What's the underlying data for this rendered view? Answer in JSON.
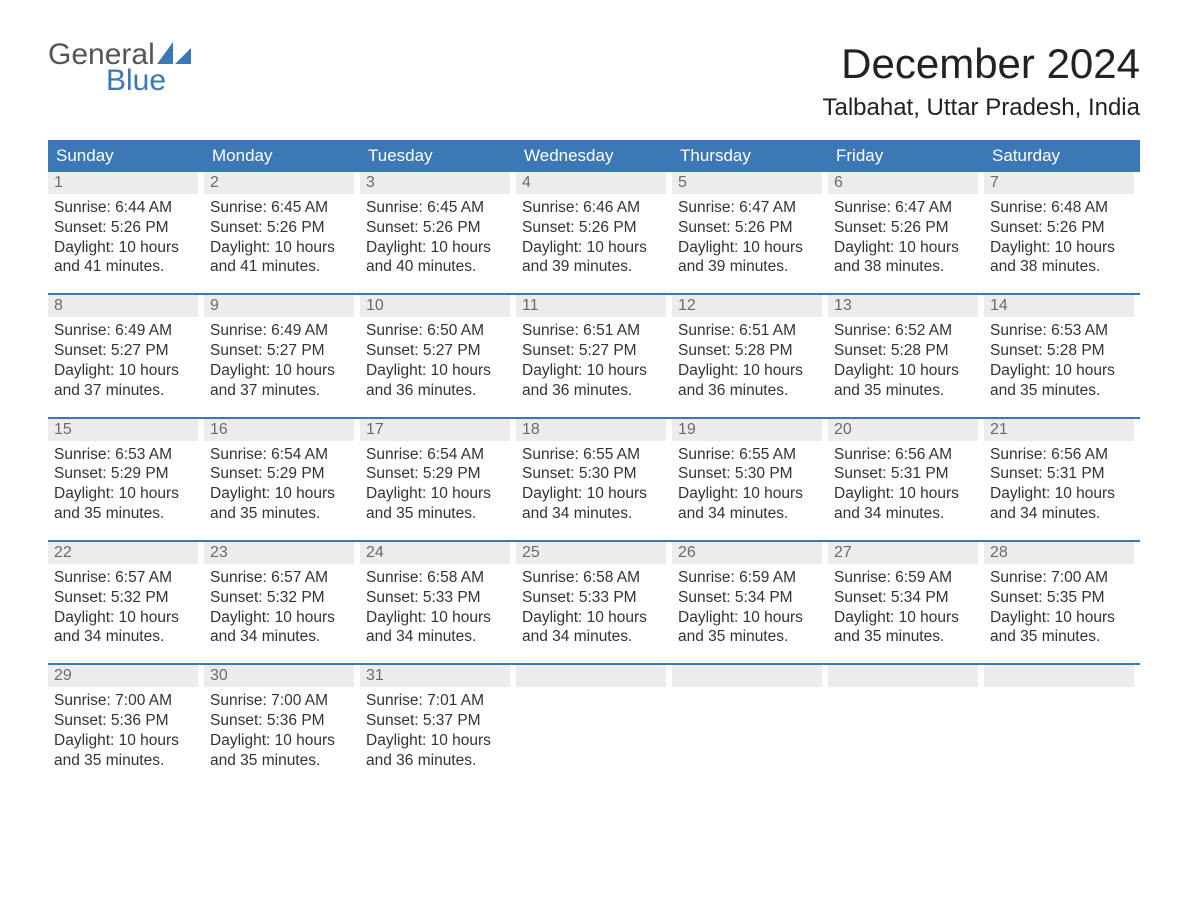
{
  "brand": {
    "line1": "General",
    "line2": "Blue"
  },
  "title": "December 2024",
  "location": "Talbahat, Uttar Pradesh, India",
  "colors": {
    "header_bg": "#3b78b5",
    "header_text": "#ffffff",
    "daynum_bg": "#ececec",
    "daynum_text": "#6b6b6b",
    "body_text": "#333333",
    "week_divider": "#3b78b5",
    "brand_gray": "#555555",
    "brand_blue": "#3b78b5"
  },
  "weekdays": [
    "Sunday",
    "Monday",
    "Tuesday",
    "Wednesday",
    "Thursday",
    "Friday",
    "Saturday"
  ],
  "weeks": [
    [
      {
        "n": "1",
        "sunrise": "6:44 AM",
        "sunset": "5:26 PM",
        "daylight": "10 hours and 41 minutes."
      },
      {
        "n": "2",
        "sunrise": "6:45 AM",
        "sunset": "5:26 PM",
        "daylight": "10 hours and 41 minutes."
      },
      {
        "n": "3",
        "sunrise": "6:45 AM",
        "sunset": "5:26 PM",
        "daylight": "10 hours and 40 minutes."
      },
      {
        "n": "4",
        "sunrise": "6:46 AM",
        "sunset": "5:26 PM",
        "daylight": "10 hours and 39 minutes."
      },
      {
        "n": "5",
        "sunrise": "6:47 AM",
        "sunset": "5:26 PM",
        "daylight": "10 hours and 39 minutes."
      },
      {
        "n": "6",
        "sunrise": "6:47 AM",
        "sunset": "5:26 PM",
        "daylight": "10 hours and 38 minutes."
      },
      {
        "n": "7",
        "sunrise": "6:48 AM",
        "sunset": "5:26 PM",
        "daylight": "10 hours and 38 minutes."
      }
    ],
    [
      {
        "n": "8",
        "sunrise": "6:49 AM",
        "sunset": "5:27 PM",
        "daylight": "10 hours and 37 minutes."
      },
      {
        "n": "9",
        "sunrise": "6:49 AM",
        "sunset": "5:27 PM",
        "daylight": "10 hours and 37 minutes."
      },
      {
        "n": "10",
        "sunrise": "6:50 AM",
        "sunset": "5:27 PM",
        "daylight": "10 hours and 36 minutes."
      },
      {
        "n": "11",
        "sunrise": "6:51 AM",
        "sunset": "5:27 PM",
        "daylight": "10 hours and 36 minutes."
      },
      {
        "n": "12",
        "sunrise": "6:51 AM",
        "sunset": "5:28 PM",
        "daylight": "10 hours and 36 minutes."
      },
      {
        "n": "13",
        "sunrise": "6:52 AM",
        "sunset": "5:28 PM",
        "daylight": "10 hours and 35 minutes."
      },
      {
        "n": "14",
        "sunrise": "6:53 AM",
        "sunset": "5:28 PM",
        "daylight": "10 hours and 35 minutes."
      }
    ],
    [
      {
        "n": "15",
        "sunrise": "6:53 AM",
        "sunset": "5:29 PM",
        "daylight": "10 hours and 35 minutes."
      },
      {
        "n": "16",
        "sunrise": "6:54 AM",
        "sunset": "5:29 PM",
        "daylight": "10 hours and 35 minutes."
      },
      {
        "n": "17",
        "sunrise": "6:54 AM",
        "sunset": "5:29 PM",
        "daylight": "10 hours and 35 minutes."
      },
      {
        "n": "18",
        "sunrise": "6:55 AM",
        "sunset": "5:30 PM",
        "daylight": "10 hours and 34 minutes."
      },
      {
        "n": "19",
        "sunrise": "6:55 AM",
        "sunset": "5:30 PM",
        "daylight": "10 hours and 34 minutes."
      },
      {
        "n": "20",
        "sunrise": "6:56 AM",
        "sunset": "5:31 PM",
        "daylight": "10 hours and 34 minutes."
      },
      {
        "n": "21",
        "sunrise": "6:56 AM",
        "sunset": "5:31 PM",
        "daylight": "10 hours and 34 minutes."
      }
    ],
    [
      {
        "n": "22",
        "sunrise": "6:57 AM",
        "sunset": "5:32 PM",
        "daylight": "10 hours and 34 minutes."
      },
      {
        "n": "23",
        "sunrise": "6:57 AM",
        "sunset": "5:32 PM",
        "daylight": "10 hours and 34 minutes."
      },
      {
        "n": "24",
        "sunrise": "6:58 AM",
        "sunset": "5:33 PM",
        "daylight": "10 hours and 34 minutes."
      },
      {
        "n": "25",
        "sunrise": "6:58 AM",
        "sunset": "5:33 PM",
        "daylight": "10 hours and 34 minutes."
      },
      {
        "n": "26",
        "sunrise": "6:59 AM",
        "sunset": "5:34 PM",
        "daylight": "10 hours and 35 minutes."
      },
      {
        "n": "27",
        "sunrise": "6:59 AM",
        "sunset": "5:34 PM",
        "daylight": "10 hours and 35 minutes."
      },
      {
        "n": "28",
        "sunrise": "7:00 AM",
        "sunset": "5:35 PM",
        "daylight": "10 hours and 35 minutes."
      }
    ],
    [
      {
        "n": "29",
        "sunrise": "7:00 AM",
        "sunset": "5:36 PM",
        "daylight": "10 hours and 35 minutes."
      },
      {
        "n": "30",
        "sunrise": "7:00 AM",
        "sunset": "5:36 PM",
        "daylight": "10 hours and 35 minutes."
      },
      {
        "n": "31",
        "sunrise": "7:01 AM",
        "sunset": "5:37 PM",
        "daylight": "10 hours and 36 minutes."
      },
      {
        "empty": true
      },
      {
        "empty": true
      },
      {
        "empty": true
      },
      {
        "empty": true
      }
    ]
  ],
  "labels": {
    "sunrise_prefix": "Sunrise: ",
    "sunset_prefix": "Sunset: ",
    "daylight_prefix": "Daylight: "
  }
}
